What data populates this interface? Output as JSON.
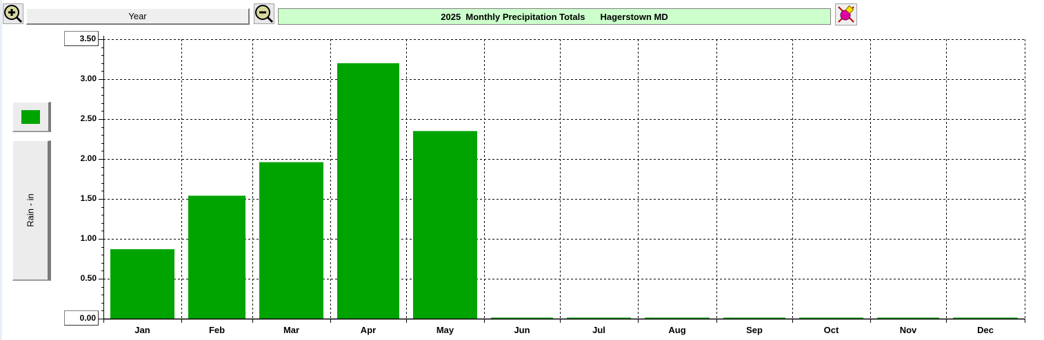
{
  "toolbar": {
    "zoom_in_icon": "magnifier-plus-icon",
    "period_label": "Year",
    "zoom_out_icon": "magnifier-minus-icon",
    "title_left": "2025  Monthly Precipitation Totals",
    "title_right": "Hagerstown MD",
    "title_bg": "#ccffcc",
    "tool_icon": "paint-palette-icon"
  },
  "legend": {
    "swatch_color": "#00a400",
    "axis_button_label": "Rain - in"
  },
  "chart_data": {
    "type": "bar",
    "title": "2025  Monthly Precipitation Totals      Hagerstown MD",
    "xlabel": "",
    "ylabel": "Rain - in",
    "categories": [
      "Jan",
      "Feb",
      "Mar",
      "Apr",
      "May",
      "Jun",
      "Jul",
      "Aug",
      "Sep",
      "Oct",
      "Nov",
      "Dec"
    ],
    "values": [
      0.87,
      1.54,
      1.96,
      3.2,
      2.35,
      0.0,
      0.0,
      0.0,
      0.0,
      0.0,
      0.0,
      0.0
    ],
    "ylim": [
      0,
      3.5
    ],
    "yticks": [
      "3.50",
      "3.00",
      "2.50",
      "2.00",
      "1.50",
      "1.00",
      "0.50",
      "0.00"
    ],
    "ytick_values": [
      3.5,
      3.0,
      2.5,
      2.0,
      1.5,
      1.0,
      0.5,
      0.0
    ],
    "bar_color": "#00a400",
    "grid": true
  }
}
